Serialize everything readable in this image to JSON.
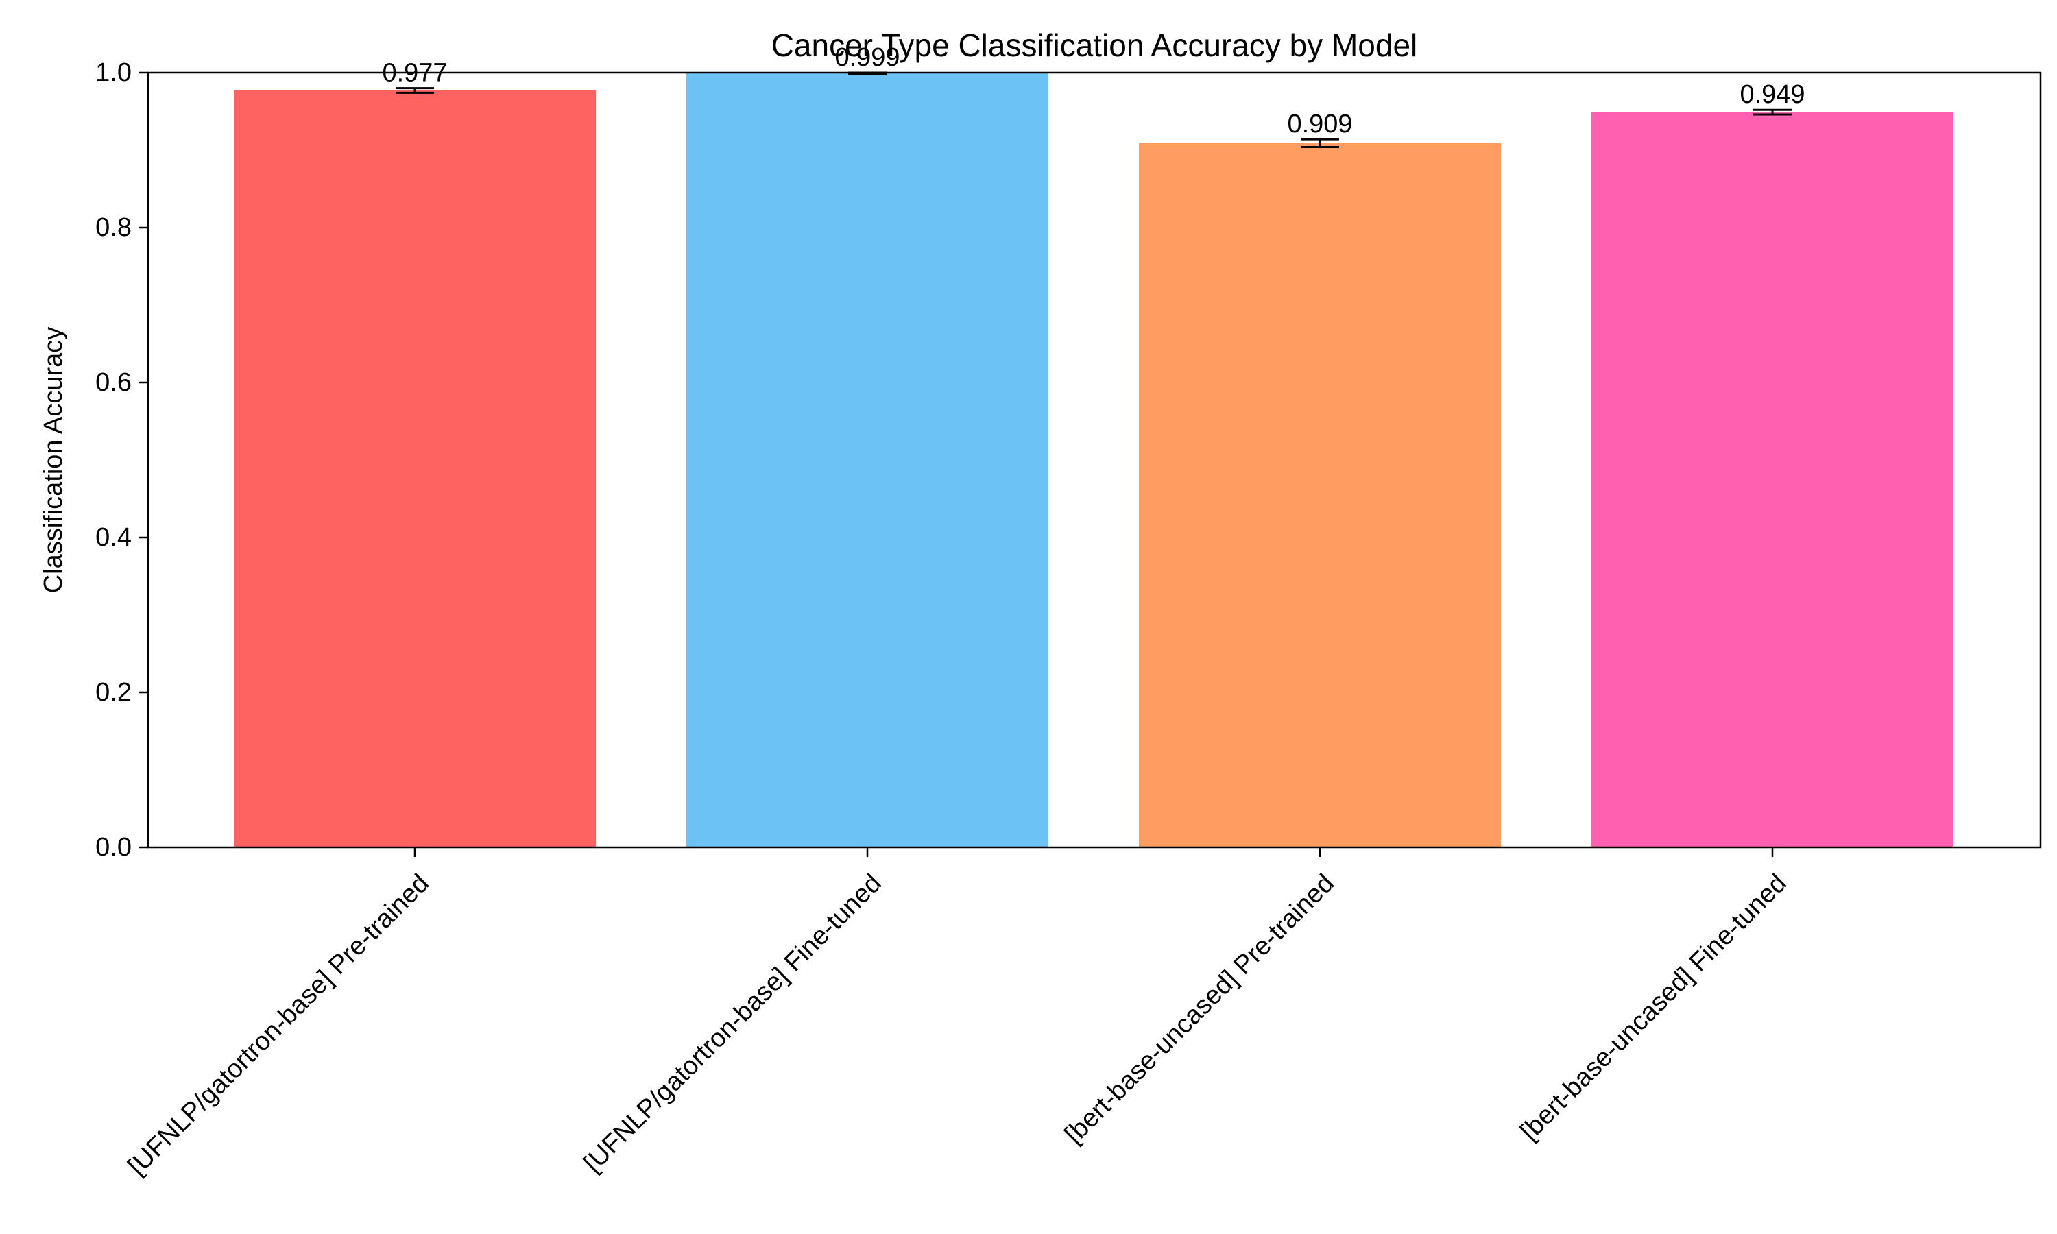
{
  "chart_data": {
    "type": "bar",
    "title": "Cancer Type Classification Accuracy by Model",
    "xlabel": "",
    "ylabel": "Classification Accuracy",
    "ylim": [
      0,
      1.0
    ],
    "yticks": [
      "0.0",
      "0.2",
      "0.4",
      "0.6",
      "0.8",
      "1.0"
    ],
    "grid": false,
    "legend": "none",
    "categories": [
      "[UFNLP/gatortron-base] Pre-trained",
      "[UFNLP/gatortron-base] Fine-tuned",
      "[bert-base-uncased] Pre-trained",
      "[bert-base-uncased] Fine-tuned"
    ],
    "values": [
      0.977,
      0.999,
      0.909,
      0.949
    ],
    "errors": [
      0.003,
      0.001,
      0.005,
      0.003
    ],
    "data_labels": [
      "0.977",
      "0.999",
      "0.909",
      "0.949"
    ],
    "colors": [
      "#ff6361",
      "#6cc1f5",
      "#ff9c61",
      "#ff61b0"
    ]
  }
}
